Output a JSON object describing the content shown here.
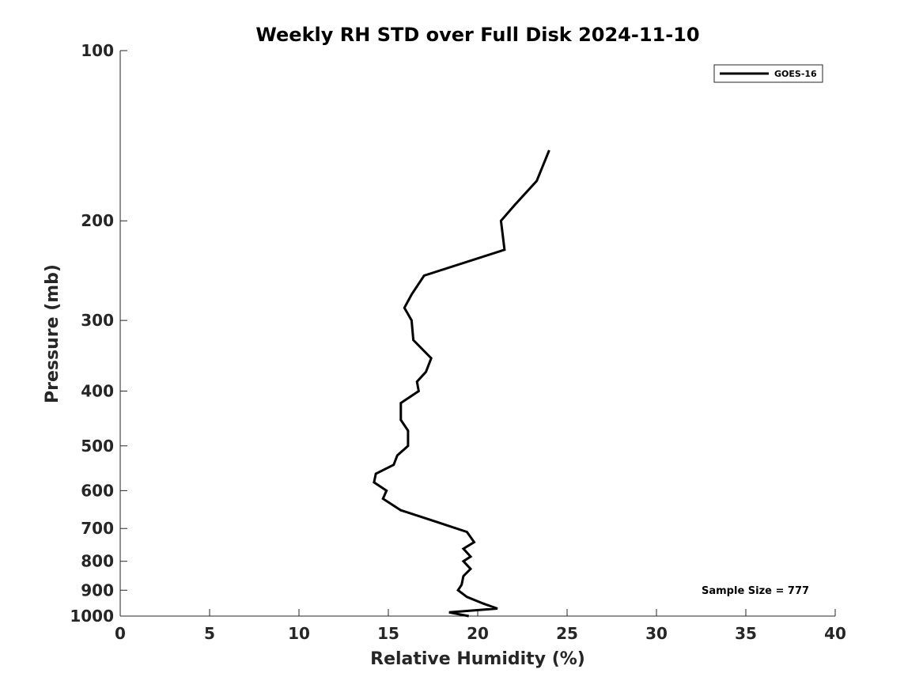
{
  "chart_data": {
    "type": "line",
    "title": "Weekly RH STD over Full Disk 2024-11-10",
    "xlabel": "Relative Humidity (%)",
    "ylabel": "Pressure (mb)",
    "xlim": [
      0,
      40
    ],
    "ylim": [
      1000,
      100
    ],
    "yscale": "log",
    "x_ticks": [
      "0",
      "5",
      "10",
      "15",
      "20",
      "25",
      "30",
      "35",
      "40"
    ],
    "y_ticks": [
      "100",
      "200",
      "300",
      "400",
      "500",
      "600",
      "700",
      "800",
      "900",
      "1000"
    ],
    "grid": false,
    "legend_position": "top-right",
    "annotation": "Sample Size = 777",
    "series": [
      {
        "name": "GOES-16",
        "color": "#000000",
        "points": [
          {
            "x": 24.0,
            "p": 150
          },
          {
            "x": 23.3,
            "p": 170
          },
          {
            "x": 22.1,
            "p": 187
          },
          {
            "x": 21.3,
            "p": 200
          },
          {
            "x": 21.5,
            "p": 225
          },
          {
            "x": 17.0,
            "p": 250
          },
          {
            "x": 16.3,
            "p": 270
          },
          {
            "x": 15.9,
            "p": 285
          },
          {
            "x": 16.3,
            "p": 300
          },
          {
            "x": 16.4,
            "p": 325
          },
          {
            "x": 17.4,
            "p": 350
          },
          {
            "x": 17.1,
            "p": 370
          },
          {
            "x": 16.6,
            "p": 385
          },
          {
            "x": 16.7,
            "p": 400
          },
          {
            "x": 15.7,
            "p": 420
          },
          {
            "x": 15.7,
            "p": 450
          },
          {
            "x": 16.1,
            "p": 470
          },
          {
            "x": 16.1,
            "p": 500
          },
          {
            "x": 15.5,
            "p": 520
          },
          {
            "x": 15.3,
            "p": 540
          },
          {
            "x": 14.3,
            "p": 560
          },
          {
            "x": 14.2,
            "p": 580
          },
          {
            "x": 14.9,
            "p": 600
          },
          {
            "x": 14.7,
            "p": 620
          },
          {
            "x": 15.7,
            "p": 650
          },
          {
            "x": 17.6,
            "p": 680
          },
          {
            "x": 19.4,
            "p": 710
          },
          {
            "x": 19.8,
            "p": 740
          },
          {
            "x": 19.2,
            "p": 760
          },
          {
            "x": 19.6,
            "p": 785
          },
          {
            "x": 19.2,
            "p": 800
          },
          {
            "x": 19.6,
            "p": 825
          },
          {
            "x": 19.2,
            "p": 850
          },
          {
            "x": 19.1,
            "p": 880
          },
          {
            "x": 18.9,
            "p": 900
          },
          {
            "x": 19.4,
            "p": 925
          },
          {
            "x": 20.3,
            "p": 950
          },
          {
            "x": 21.1,
            "p": 970
          },
          {
            "x": 18.4,
            "p": 985
          },
          {
            "x": 19.5,
            "p": 1000
          }
        ]
      }
    ]
  }
}
